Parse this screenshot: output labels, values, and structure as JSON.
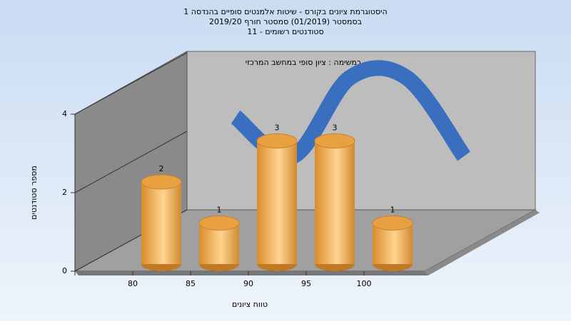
{
  "chart_data": {
    "type": "bar3d",
    "title": [
      "היסטוגרמת ציונים בקורס - שיטות אלמנטים סופיים בהנדסה 1",
      "בסמסטר  (01/2019)  סמסטר חורף 2019/20",
      "סטודנטים רשומים - 11"
    ],
    "annotation": "במשימה : ציון סופי במחשב המרכזי",
    "y_label": "מספר סטודנטים",
    "x_label": "טווח ציונים",
    "categories": [
      "80",
      "85",
      "90",
      "95",
      "100"
    ],
    "values": [
      2,
      1,
      3,
      3,
      1
    ],
    "color": "#e8a040",
    "line_color": "#3a6fc0",
    "ylim": [
      0,
      4
    ],
    "yticks": [
      0,
      2,
      4
    ],
    "grid": true
  }
}
